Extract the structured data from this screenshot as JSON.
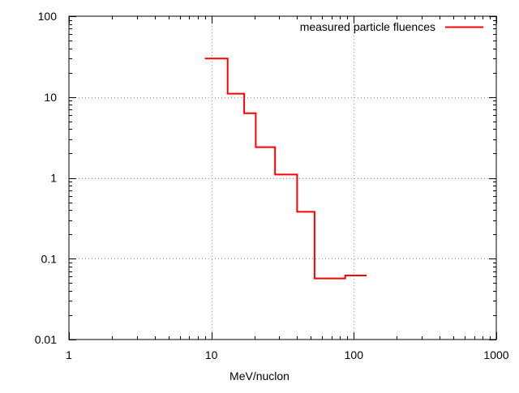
{
  "chart_data": {
    "type": "line",
    "title": "",
    "xlabel": "MeV/nuclon",
    "ylabel": "",
    "xscale": "log",
    "yscale": "log",
    "xlim": [
      1,
      1000
    ],
    "ylim": [
      0.01,
      100
    ],
    "x_ticks": [
      1,
      10,
      100,
      1000
    ],
    "x_tick_labels": [
      "1",
      "10",
      "100",
      "1000"
    ],
    "y_ticks": [
      0.01,
      0.1,
      1,
      10,
      100
    ],
    "y_tick_labels": [
      "0.01",
      "0.1",
      "1",
      "10",
      "100"
    ],
    "grid": true,
    "legend_position": "top-right",
    "series": [
      {
        "name": "measured particle fluences",
        "color": "#ff0000",
        "style": "steps",
        "bins": [
          {
            "x_start": 9,
            "x_end": 13,
            "y": 30
          },
          {
            "x_start": 13,
            "x_end": 17,
            "y": 11
          },
          {
            "x_start": 17,
            "x_end": 20.5,
            "y": 6.3
          },
          {
            "x_start": 20.5,
            "x_end": 28,
            "y": 2.4
          },
          {
            "x_start": 28,
            "x_end": 40,
            "y": 1.1
          },
          {
            "x_start": 40,
            "x_end": 53,
            "y": 0.38
          },
          {
            "x_start": 53,
            "x_end": 87,
            "y": 0.057
          },
          {
            "x_start": 87,
            "x_end": 123,
            "y": 0.062
          }
        ]
      }
    ]
  }
}
